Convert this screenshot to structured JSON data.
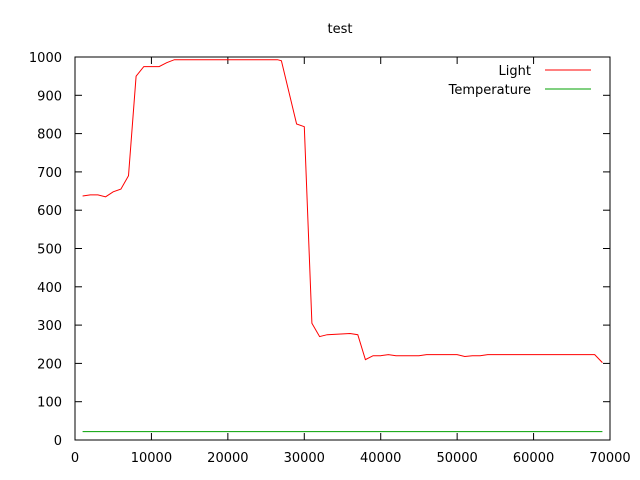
{
  "chart_data": {
    "type": "line",
    "title": "test",
    "xlabel": "",
    "ylabel": "",
    "xlim": [
      0,
      70000
    ],
    "ylim": [
      0,
      1000
    ],
    "xticks": [
      0,
      10000,
      20000,
      30000,
      40000,
      50000,
      60000,
      70000
    ],
    "yticks": [
      0,
      100,
      200,
      300,
      400,
      500,
      600,
      700,
      800,
      900,
      1000
    ],
    "grid": false,
    "legend_position": "top-right",
    "series": [
      {
        "name": "Light",
        "color": "#ff0000",
        "points": [
          [
            1000,
            637
          ],
          [
            2000,
            640
          ],
          [
            3000,
            640
          ],
          [
            4000,
            635
          ],
          [
            5000,
            648
          ],
          [
            6000,
            655
          ],
          [
            7000,
            690
          ],
          [
            8000,
            950
          ],
          [
            9000,
            975
          ],
          [
            10000,
            975
          ],
          [
            11000,
            975
          ],
          [
            12000,
            985
          ],
          [
            13000,
            993
          ],
          [
            15000,
            993
          ],
          [
            20000,
            993
          ],
          [
            25000,
            993
          ],
          [
            26500,
            993
          ],
          [
            27000,
            990
          ],
          [
            29000,
            825
          ],
          [
            30000,
            818
          ],
          [
            31000,
            305
          ],
          [
            32000,
            270
          ],
          [
            33000,
            275
          ],
          [
            36000,
            278
          ],
          [
            37000,
            275
          ],
          [
            38000,
            210
          ],
          [
            39000,
            220
          ],
          [
            40000,
            220
          ],
          [
            41000,
            223
          ],
          [
            42000,
            220
          ],
          [
            45000,
            220
          ],
          [
            46000,
            223
          ],
          [
            50000,
            223
          ],
          [
            51000,
            218
          ],
          [
            52000,
            220
          ],
          [
            53000,
            220
          ],
          [
            54000,
            223
          ],
          [
            60000,
            223
          ],
          [
            65000,
            223
          ],
          [
            68000,
            223
          ],
          [
            69000,
            202
          ]
        ]
      },
      {
        "name": "Temperature",
        "color": "#00a000",
        "points": [
          [
            1000,
            22
          ],
          [
            10000,
            22
          ],
          [
            20000,
            22
          ],
          [
            30000,
            22
          ],
          [
            40000,
            22
          ],
          [
            50000,
            22
          ],
          [
            60000,
            22
          ],
          [
            69000,
            22
          ]
        ]
      }
    ]
  }
}
